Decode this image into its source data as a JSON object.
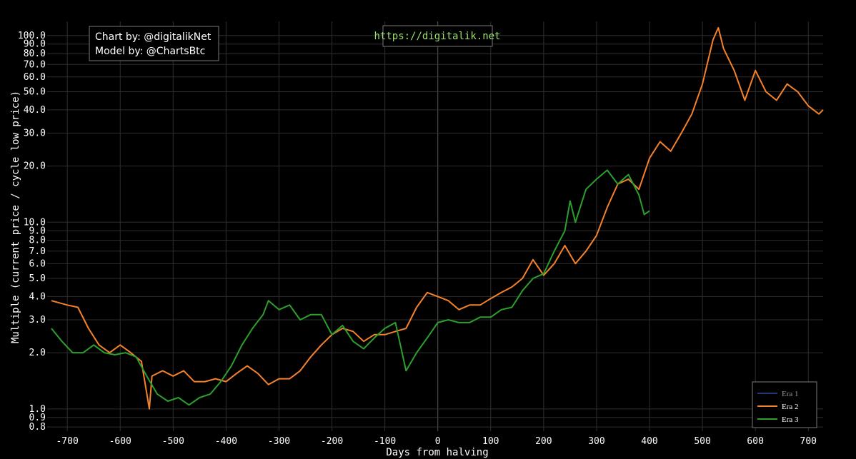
{
  "chart_data": {
    "type": "line",
    "x_label": "Days from halving",
    "y_label": "Multiple (current price / cycle low price)",
    "annotations": [
      "Chart by: @digitalikNet",
      "Model by: @ChartsBtc",
      "https://digitalik.net"
    ],
    "log_y": true,
    "grid": true,
    "legend": "bottom-right",
    "xlim": [
      -738,
      728
    ],
    "ylim": [
      0.76,
      119
    ],
    "xticks": [
      -700,
      -600,
      -500,
      -400,
      -300,
      -200,
      -100,
      0,
      100,
      200,
      300,
      400,
      500,
      600,
      700
    ],
    "yticks": [
      0.8,
      0.9,
      {
        "value": 1,
        "label": "1.0"
      },
      {
        "value": 2,
        "label": "2.0"
      },
      {
        "value": 3,
        "label": "3.0"
      },
      {
        "value": 4,
        "label": "4.0"
      },
      {
        "value": 5,
        "label": "5.0"
      },
      {
        "value": 6,
        "label": "6.0"
      },
      {
        "value": 7,
        "label": "7.0"
      },
      {
        "value": 8,
        "label": "8.0"
      },
      {
        "value": 9,
        "label": "9.0"
      },
      {
        "value": 10,
        "label": "10.0"
      },
      {
        "value": 20,
        "label": "20.0"
      },
      {
        "value": 30,
        "label": "30.0"
      },
      {
        "value": 40,
        "label": "40.0"
      },
      {
        "value": 50,
        "label": "50.0"
      },
      {
        "value": 60,
        "label": "60.0"
      },
      {
        "value": 70,
        "label": "70.0"
      },
      {
        "value": 80,
        "label": "80.0"
      },
      {
        "value": 90,
        "label": "90.0"
      },
      {
        "value": 100,
        "label": "100.0"
      }
    ],
    "series": [
      {
        "name": "Era 1",
        "color": "#1f3a73",
        "x": [],
        "values": []
      },
      {
        "name": "Era 2",
        "color": "#f5822a",
        "x": [
          -730,
          -700,
          -680,
          -660,
          -640,
          -620,
          -600,
          -580,
          -560,
          -545,
          -540,
          -520,
          -500,
          -480,
          -460,
          -440,
          -420,
          -400,
          -380,
          -360,
          -340,
          -320,
          -300,
          -280,
          -260,
          -240,
          -220,
          -200,
          -180,
          -160,
          -140,
          -120,
          -100,
          -80,
          -60,
          -40,
          -20,
          0,
          20,
          40,
          60,
          80,
          100,
          120,
          140,
          160,
          180,
          200,
          220,
          240,
          260,
          280,
          300,
          320,
          340,
          360,
          380,
          400,
          420,
          440,
          460,
          480,
          500,
          520,
          530,
          540,
          560,
          580,
          600,
          620,
          640,
          660,
          680,
          700,
          720,
          728
        ],
        "values": [
          3.8,
          3.6,
          3.5,
          2.7,
          2.2,
          2.0,
          2.2,
          2.0,
          1.8,
          1.0,
          1.5,
          1.6,
          1.5,
          1.6,
          1.4,
          1.4,
          1.45,
          1.4,
          1.55,
          1.7,
          1.55,
          1.35,
          1.45,
          1.45,
          1.6,
          1.9,
          2.2,
          2.5,
          2.7,
          2.6,
          2.3,
          2.5,
          2.5,
          2.6,
          2.7,
          3.5,
          4.2,
          4.0,
          3.8,
          3.4,
          3.6,
          3.6,
          3.9,
          4.2,
          4.5,
          5.0,
          6.3,
          5.2,
          6.0,
          7.5,
          6.0,
          7.0,
          8.5,
          12,
          16,
          17,
          15,
          22,
          27,
          24,
          30,
          38,
          55,
          95,
          110,
          85,
          65,
          45,
          65,
          50,
          45,
          55,
          50,
          42,
          38,
          40
        ]
      },
      {
        "name": "Era 3",
        "color": "#2ca02c",
        "x": [
          -730,
          -710,
          -690,
          -670,
          -650,
          -630,
          -610,
          -590,
          -570,
          -550,
          -530,
          -510,
          -490,
          -470,
          -450,
          -430,
          -410,
          -390,
          -370,
          -350,
          -330,
          -320,
          -300,
          -280,
          -260,
          -240,
          -220,
          -200,
          -180,
          -160,
          -140,
          -120,
          -100,
          -80,
          -60,
          -40,
          -20,
          0,
          20,
          40,
          60,
          80,
          100,
          120,
          140,
          160,
          180,
          200,
          220,
          240,
          250,
          260,
          280,
          300,
          320,
          340,
          360,
          380,
          390,
          400
        ],
        "values": [
          2.7,
          2.3,
          2.0,
          2.0,
          2.2,
          2.0,
          1.95,
          2.0,
          1.9,
          1.5,
          1.2,
          1.1,
          1.15,
          1.05,
          1.15,
          1.2,
          1.4,
          1.7,
          2.2,
          2.7,
          3.2,
          3.8,
          3.4,
          3.6,
          3.0,
          3.2,
          3.2,
          2.5,
          2.8,
          2.3,
          2.1,
          2.4,
          2.7,
          2.9,
          1.6,
          2.0,
          2.4,
          2.9,
          3.0,
          2.9,
          2.9,
          3.1,
          3.1,
          3.4,
          3.5,
          4.3,
          5.0,
          5.3,
          7.0,
          9.0,
          13,
          10,
          15,
          17,
          19,
          16,
          18,
          14,
          11,
          11.5
        ]
      }
    ]
  }
}
